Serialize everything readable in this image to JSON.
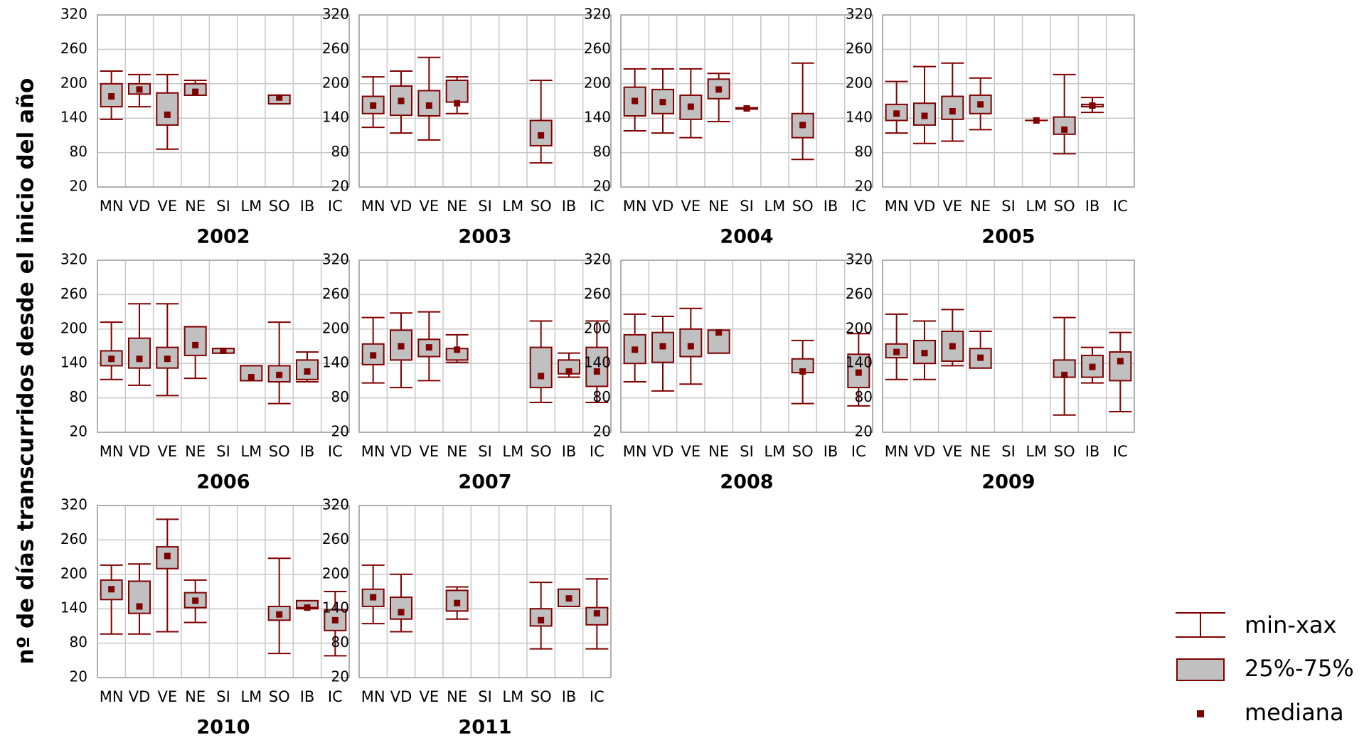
{
  "ylabel": "nº de días transcurridos desde el inicio del año",
  "legend": {
    "whisker": "min-xax",
    "box": "25%-75%",
    "median": "mediana"
  },
  "line_color": "#800000",
  "box_color": "#c0c0c0",
  "grid": true,
  "chart_data": [
    {
      "type": "box",
      "title": "2002",
      "categories": [
        "MN",
        "VD",
        "VE",
        "NE",
        "SI",
        "LM",
        "SO",
        "IB",
        "IC"
      ],
      "ylim": [
        20,
        320
      ],
      "yticks": [
        20,
        80,
        140,
        200,
        260,
        320
      ],
      "min": [
        138,
        160,
        86,
        180,
        null,
        null,
        165,
        null,
        null
      ],
      "q1": [
        160,
        182,
        128,
        180,
        null,
        null,
        165,
        null,
        null
      ],
      "median": [
        178,
        190,
        146,
        186,
        null,
        null,
        176,
        null,
        null
      ],
      "q3": [
        200,
        200,
        184,
        200,
        null,
        null,
        180,
        null,
        null
      ],
      "max": [
        222,
        216,
        216,
        206,
        null,
        null,
        180,
        null,
        null
      ]
    },
    {
      "type": "box",
      "title": "2003",
      "categories": [
        "MN",
        "VD",
        "VE",
        "NE",
        "SI",
        "LM",
        "SO",
        "IB",
        "IC"
      ],
      "ylim": [
        20,
        320
      ],
      "yticks": [
        20,
        80,
        140,
        200,
        260,
        320
      ],
      "min": [
        124,
        114,
        102,
        148,
        null,
        null,
        62,
        null,
        null
      ],
      "q1": [
        148,
        145,
        144,
        168,
        null,
        null,
        92,
        null,
        null
      ],
      "median": [
        162,
        170,
        162,
        166,
        null,
        null,
        110,
        null,
        null
      ],
      "q3": [
        178,
        196,
        188,
        206,
        null,
        null,
        136,
        null,
        null
      ],
      "max": [
        212,
        222,
        246,
        212,
        null,
        null,
        206,
        null,
        null
      ]
    },
    {
      "type": "box",
      "title": "2004",
      "categories": [
        "MN",
        "VD",
        "VE",
        "NE",
        "SI",
        "LM",
        "SO",
        "IB",
        "IC"
      ],
      "ylim": [
        20,
        320
      ],
      "yticks": [
        20,
        80,
        140,
        200,
        260,
        320
      ],
      "min": [
        118,
        114,
        106,
        134,
        156,
        null,
        68,
        null,
        null
      ],
      "q1": [
        144,
        148,
        138,
        174,
        156,
        null,
        106,
        null,
        null
      ],
      "median": [
        170,
        168,
        160,
        190,
        157,
        null,
        128,
        null,
        null
      ],
      "q3": [
        194,
        190,
        180,
        208,
        158,
        null,
        148,
        null,
        null
      ],
      "max": [
        226,
        226,
        226,
        218,
        158,
        null,
        236,
        null,
        null
      ]
    },
    {
      "type": "box",
      "title": "2005",
      "categories": [
        "MN",
        "VD",
        "VE",
        "NE",
        "SI",
        "LM",
        "SO",
        "IB",
        "IC"
      ],
      "ylim": [
        20,
        320
      ],
      "yticks": [
        20,
        80,
        140,
        200,
        260,
        320
      ],
      "min": [
        114,
        96,
        100,
        120,
        null,
        136,
        78,
        150,
        null
      ],
      "q1": [
        136,
        128,
        138,
        148,
        null,
        136,
        112,
        160,
        null
      ],
      "median": [
        148,
        144,
        152,
        164,
        null,
        136,
        120,
        162,
        null
      ],
      "q3": [
        164,
        166,
        178,
        180,
        null,
        136,
        142,
        164,
        null
      ],
      "max": [
        204,
        230,
        236,
        210,
        null,
        136,
        216,
        176,
        null
      ]
    },
    {
      "type": "box",
      "title": "2006",
      "categories": [
        "MN",
        "VD",
        "VE",
        "NE",
        "SI",
        "LM",
        "SO",
        "IB",
        "IC"
      ],
      "ylim": [
        20,
        320
      ],
      "yticks": [
        20,
        80,
        140,
        200,
        260,
        320
      ],
      "min": [
        112,
        102,
        84,
        114,
        158,
        110,
        70,
        108,
        null
      ],
      "q1": [
        136,
        132,
        132,
        154,
        158,
        110,
        108,
        112,
        null
      ],
      "median": [
        148,
        148,
        148,
        172,
        162,
        116,
        120,
        126,
        null
      ],
      "q3": [
        162,
        184,
        168,
        204,
        166,
        136,
        136,
        146,
        null
      ],
      "max": [
        212,
        244,
        244,
        204,
        166,
        136,
        212,
        160,
        null
      ]
    },
    {
      "type": "box",
      "title": "2007",
      "categories": [
        "MN",
        "VD",
        "VE",
        "NE",
        "SI",
        "LM",
        "SO",
        "IB",
        "IC"
      ],
      "ylim": [
        20,
        320
      ],
      "yticks": [
        20,
        80,
        140,
        200,
        260,
        320
      ],
      "min": [
        106,
        98,
        110,
        142,
        null,
        null,
        72,
        116,
        72
      ],
      "q1": [
        138,
        146,
        152,
        146,
        null,
        null,
        98,
        122,
        100
      ],
      "median": [
        154,
        170,
        168,
        164,
        null,
        null,
        118,
        126,
        126
      ],
      "q3": [
        174,
        198,
        182,
        166,
        null,
        null,
        168,
        146,
        168
      ],
      "max": [
        220,
        228,
        230,
        190,
        null,
        null,
        214,
        158,
        214
      ]
    },
    {
      "type": "box",
      "title": "2008",
      "categories": [
        "MN",
        "VD",
        "VE",
        "NE",
        "SI",
        "LM",
        "SO",
        "IB",
        "IC"
      ],
      "ylim": [
        20,
        320
      ],
      "yticks": [
        20,
        80,
        140,
        200,
        260,
        320
      ],
      "min": [
        108,
        92,
        104,
        158,
        null,
        null,
        70,
        null,
        66
      ],
      "q1": [
        140,
        142,
        152,
        158,
        null,
        null,
        124,
        null,
        98
      ],
      "median": [
        164,
        170,
        170,
        194,
        null,
        null,
        126,
        null,
        124
      ],
      "q3": [
        190,
        194,
        200,
        198,
        null,
        null,
        148,
        null,
        156
      ],
      "max": [
        226,
        222,
        236,
        198,
        null,
        null,
        180,
        null,
        192
      ]
    },
    {
      "type": "box",
      "title": "2009",
      "categories": [
        "MN",
        "VD",
        "VE",
        "NE",
        "SI",
        "LM",
        "SO",
        "IB",
        "IC"
      ],
      "ylim": [
        20,
        320
      ],
      "yticks": [
        20,
        80,
        140,
        200,
        260,
        320
      ],
      "min": [
        112,
        112,
        136,
        132,
        null,
        null,
        50,
        106,
        56
      ],
      "q1": [
        150,
        140,
        144,
        132,
        null,
        null,
        116,
        116,
        110
      ],
      "median": [
        160,
        158,
        170,
        150,
        null,
        null,
        120,
        134,
        144
      ],
      "q3": [
        174,
        180,
        196,
        166,
        null,
        null,
        146,
        154,
        160
      ],
      "max": [
        226,
        214,
        234,
        196,
        null,
        null,
        220,
        168,
        194
      ]
    },
    {
      "type": "box",
      "title": "2010",
      "categories": [
        "MN",
        "VD",
        "VE",
        "NE",
        "SI",
        "LM",
        "SO",
        "IB",
        "IC"
      ],
      "ylim": [
        20,
        320
      ],
      "yticks": [
        20,
        80,
        140,
        200,
        260,
        320
      ],
      "min": [
        96,
        96,
        100,
        116,
        null,
        null,
        62,
        140,
        58
      ],
      "q1": [
        156,
        132,
        210,
        142,
        null,
        null,
        120,
        142,
        102
      ],
      "median": [
        174,
        144,
        232,
        154,
        null,
        null,
        130,
        142,
        120
      ],
      "q3": [
        190,
        188,
        248,
        168,
        null,
        null,
        144,
        154,
        138
      ],
      "max": [
        216,
        218,
        296,
        190,
        null,
        null,
        228,
        154,
        170
      ]
    },
    {
      "type": "box",
      "title": "2011",
      "categories": [
        "MN",
        "VD",
        "VE",
        "NE",
        "SI",
        "LM",
        "SO",
        "IB",
        "IC"
      ],
      "ylim": [
        20,
        320
      ],
      "yticks": [
        20,
        80,
        140,
        200,
        260,
        320
      ],
      "min": [
        114,
        100,
        null,
        122,
        null,
        null,
        70,
        144,
        70
      ],
      "q1": [
        144,
        122,
        null,
        136,
        null,
        null,
        110,
        144,
        112
      ],
      "median": [
        160,
        134,
        null,
        150,
        null,
        null,
        120,
        158,
        132
      ],
      "q3": [
        174,
        160,
        null,
        172,
        null,
        null,
        140,
        174,
        142
      ],
      "max": [
        216,
        200,
        null,
        178,
        null,
        null,
        186,
        174,
        192
      ]
    }
  ]
}
